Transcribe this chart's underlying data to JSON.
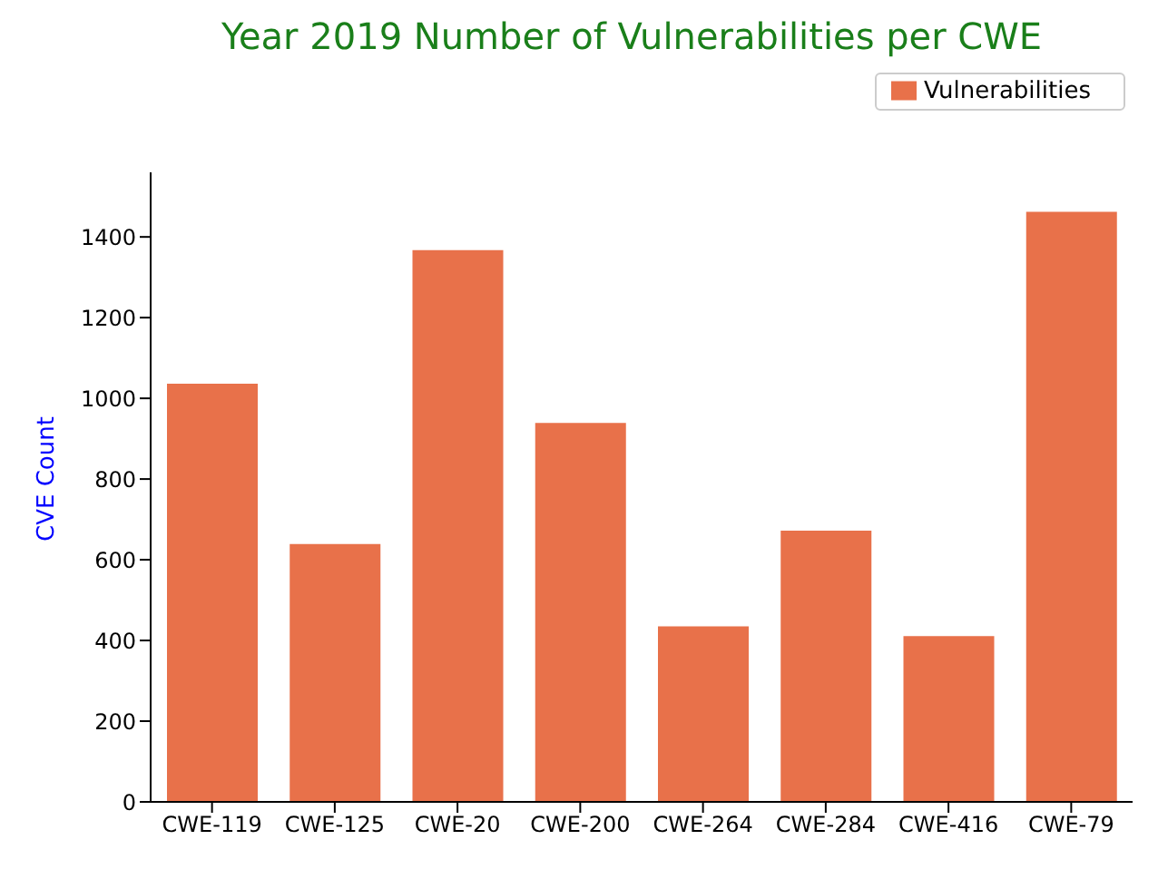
{
  "chart_data": {
    "type": "bar",
    "title": "Year 2019 Number of Vulnerabilities per CWE",
    "ylabel": "CVE Count",
    "categories": [
      "CWE-119",
      "CWE-125",
      "CWE-20",
      "CWE-200",
      "CWE-264",
      "CWE-284",
      "CWE-416",
      "CWE-79"
    ],
    "series": [
      {
        "name": "Vulnerabilities",
        "color": "#e8714a",
        "values": [
          1036,
          639,
          1367,
          939,
          435,
          672,
          411,
          1462
        ]
      }
    ],
    "ylim": [
      0,
      1560
    ],
    "yticks": [
      0,
      200,
      400,
      600,
      800,
      1000,
      1200,
      1400
    ],
    "grid": false,
    "legend": "top right"
  }
}
